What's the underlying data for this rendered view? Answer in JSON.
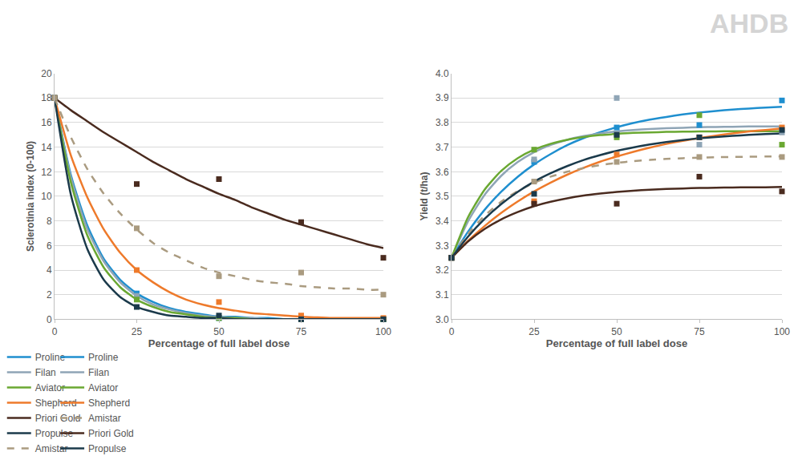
{
  "chart_data": [
    {
      "type": "scatter",
      "x_label": "Percentage of full label dose",
      "y_label": "Sclerotinia index (0-100)",
      "x": [
        0,
        25,
        50,
        75,
        100
      ],
      "fit_x": [
        0,
        5,
        10,
        15,
        20,
        25,
        30,
        35,
        40,
        45,
        50,
        55,
        60,
        65,
        70,
        75,
        80,
        85,
        90,
        95,
        100
      ],
      "xlim": [
        0,
        100
      ],
      "xticks": [
        0,
        25,
        50,
        75,
        100
      ],
      "ylim": [
        0,
        20
      ],
      "yticks": [
        0,
        2,
        4,
        6,
        8,
        10,
        12,
        14,
        16,
        18,
        20
      ],
      "grid": true,
      "legend": "bottom",
      "marker": "square",
      "series": [
        {
          "name": "Proline",
          "color": "#1f8fcf",
          "line_style": "solid",
          "values": [
            18,
            2.1,
            0.1,
            0,
            0
          ],
          "fit": [
            18,
            11.7,
            7.6,
            4.9,
            3.2,
            2.1,
            1.4,
            0.9,
            0.6,
            0.4,
            0.2,
            0.2,
            0.1,
            0.1,
            0,
            0,
            0,
            0,
            0,
            0,
            0
          ]
        },
        {
          "name": "Filan",
          "color": "#8fa5b6",
          "line_style": "solid",
          "values": [
            18,
            1.9,
            0.1,
            0,
            0
          ],
          "fit": [
            18,
            11.5,
            7.3,
            4.7,
            3.0,
            1.9,
            1.2,
            0.8,
            0.5,
            0.3,
            0.2,
            0.1,
            0.1,
            0,
            0,
            0,
            0,
            0,
            0,
            0,
            0
          ]
        },
        {
          "name": "Aviator",
          "color": "#6aa832",
          "line_style": "solid",
          "values": [
            18,
            1.6,
            0.1,
            0,
            0
          ],
          "fit": [
            18,
            11.1,
            6.8,
            4.2,
            2.6,
            1.6,
            1.0,
            0.6,
            0.4,
            0.2,
            0.1,
            0.1,
            0,
            0,
            0,
            0,
            0,
            0,
            0,
            0,
            0
          ]
        },
        {
          "name": "Shepherd",
          "color": "#ee7a2b",
          "line_style": "solid",
          "values": [
            18,
            4.0,
            1.4,
            0.3,
            0.1
          ],
          "fit": [
            18,
            13.3,
            9.9,
            7.3,
            5.4,
            4.0,
            3.0,
            2.2,
            1.6,
            1.2,
            0.9,
            0.7,
            0.5,
            0.4,
            0.3,
            0.2,
            0.15,
            0.1,
            0.1,
            0.1,
            0.1
          ]
        },
        {
          "name": "Priori Gold",
          "color": "#4a2b1f",
          "line_style": "solid",
          "values": [
            18,
            11.0,
            11.4,
            7.9,
            5.0
          ],
          "fit": [
            18,
            17.0,
            16.1,
            15.2,
            14.4,
            13.6,
            12.8,
            12.1,
            11.4,
            10.8,
            10.2,
            9.7,
            9.1,
            8.6,
            8.1,
            7.7,
            7.3,
            6.9,
            6.5,
            6.1,
            5.8
          ]
        },
        {
          "name": "Propulse",
          "color": "#1b3a4b",
          "line_style": "solid",
          "values": [
            18,
            1.0,
            0.3,
            0,
            0
          ],
          "fit": [
            18,
            10.1,
            5.7,
            3.2,
            1.8,
            1.0,
            0.6,
            0.3,
            0.2,
            0.1,
            0.1,
            0,
            0,
            0,
            0,
            0,
            0,
            0,
            0,
            0,
            0
          ]
        },
        {
          "name": "Amistar",
          "color": "#aa9b80",
          "line_style": "dashed",
          "values": [
            18,
            7.4,
            3.5,
            3.8,
            2.0
          ],
          "fit": [
            18,
            14.8,
            12.2,
            10.2,
            8.6,
            7.3,
            6.2,
            5.4,
            4.8,
            4.2,
            3.8,
            3.5,
            3.2,
            3.0,
            2.9,
            2.7,
            2.6,
            2.5,
            2.5,
            2.4,
            2.4
          ]
        }
      ]
    },
    {
      "type": "scatter",
      "x_label": "Percentage of full label dose",
      "y_label": "Yield (t/ha)",
      "annotations": [
        {
          "text": "AHDB"
        }
      ],
      "x": [
        0,
        25,
        50,
        75,
        100
      ],
      "fit_x": [
        0,
        5,
        10,
        15,
        20,
        25,
        30,
        35,
        40,
        45,
        50,
        55,
        60,
        65,
        70,
        75,
        80,
        85,
        90,
        95,
        100
      ],
      "xlim": [
        0,
        100
      ],
      "xticks": [
        0,
        25,
        50,
        75,
        100
      ],
      "ylim": [
        3.0,
        4.0
      ],
      "yticks": [
        {
          "value": 3.0,
          "label": "3.0"
        },
        3.1,
        3.2,
        3.3,
        3.4,
        3.5,
        3.6,
        3.7,
        3.8,
        3.9,
        {
          "value": 4.0,
          "label": "4.0"
        }
      ],
      "grid": true,
      "legend": "bottom",
      "marker": "square",
      "series": [
        {
          "name": "Proline",
          "color": "#1f8fcf",
          "line_style": "solid",
          "values": [
            3.25,
            3.64,
            3.78,
            3.79,
            3.89
          ],
          "fit": [
            3.25,
            3.356,
            3.445,
            3.518,
            3.579,
            3.63,
            3.672,
            3.708,
            3.737,
            3.761,
            3.781,
            3.798,
            3.812,
            3.823,
            3.833,
            3.841,
            3.847,
            3.853,
            3.857,
            3.861,
            3.864
          ]
        },
        {
          "name": "Filan",
          "color": "#8fa5b6",
          "line_style": "solid",
          "values": [
            3.25,
            3.65,
            3.9,
            3.71,
            3.76
          ],
          "fit": [
            3.25,
            3.398,
            3.506,
            3.583,
            3.639,
            3.68,
            3.709,
            3.73,
            3.745,
            3.756,
            3.764,
            3.77,
            3.774,
            3.777,
            3.779,
            3.781,
            3.782,
            3.783,
            3.784,
            3.784,
            3.784
          ]
        },
        {
          "name": "Aviator",
          "color": "#6aa832",
          "line_style": "solid",
          "values": [
            3.25,
            3.69,
            3.74,
            3.83,
            3.71
          ],
          "fit": [
            3.25,
            3.415,
            3.527,
            3.603,
            3.655,
            3.69,
            3.714,
            3.73,
            3.741,
            3.749,
            3.754,
            3.758,
            3.76,
            3.762,
            3.763,
            3.764,
            3.764,
            3.765,
            3.765,
            3.765,
            3.765
          ]
        },
        {
          "name": "Shepherd",
          "color": "#ee7a2b",
          "line_style": "solid",
          "values": [
            3.25,
            3.48,
            3.67,
            3.74,
            3.78
          ],
          "fit": [
            3.25,
            3.319,
            3.379,
            3.432,
            3.479,
            3.52,
            3.556,
            3.588,
            3.616,
            3.641,
            3.662,
            3.681,
            3.698,
            3.713,
            3.726,
            3.737,
            3.747,
            3.756,
            3.764,
            3.77,
            3.776
          ]
        },
        {
          "name": "Amistar",
          "color": "#aa9b80",
          "line_style": "dashed",
          "values": [
            3.25,
            3.56,
            3.64,
            3.66,
            3.66
          ],
          "fit": [
            3.25,
            3.347,
            3.421,
            3.478,
            3.521,
            3.555,
            3.58,
            3.6,
            3.615,
            3.627,
            3.636,
            3.643,
            3.648,
            3.652,
            3.655,
            3.657,
            3.659,
            3.66,
            3.661,
            3.662,
            3.662
          ]
        },
        {
          "name": "Priori Gold",
          "color": "#4a2b1f",
          "line_style": "solid",
          "values": [
            3.25,
            3.47,
            3.47,
            3.58,
            3.52
          ],
          "fit": [
            3.25,
            3.316,
            3.367,
            3.406,
            3.436,
            3.46,
            3.478,
            3.492,
            3.503,
            3.511,
            3.518,
            3.523,
            3.527,
            3.53,
            3.532,
            3.534,
            3.535,
            3.536,
            3.537,
            3.537,
            3.538
          ]
        },
        {
          "name": "Propulse",
          "color": "#1b3a4b",
          "line_style": "solid",
          "values": [
            3.25,
            3.51,
            3.75,
            3.74,
            3.77
          ],
          "fit": [
            3.25,
            3.336,
            3.408,
            3.468,
            3.518,
            3.56,
            3.594,
            3.623,
            3.648,
            3.668,
            3.685,
            3.699,
            3.711,
            3.721,
            3.729,
            3.736,
            3.741,
            3.746,
            3.75,
            3.753,
            3.756
          ]
        }
      ]
    }
  ]
}
